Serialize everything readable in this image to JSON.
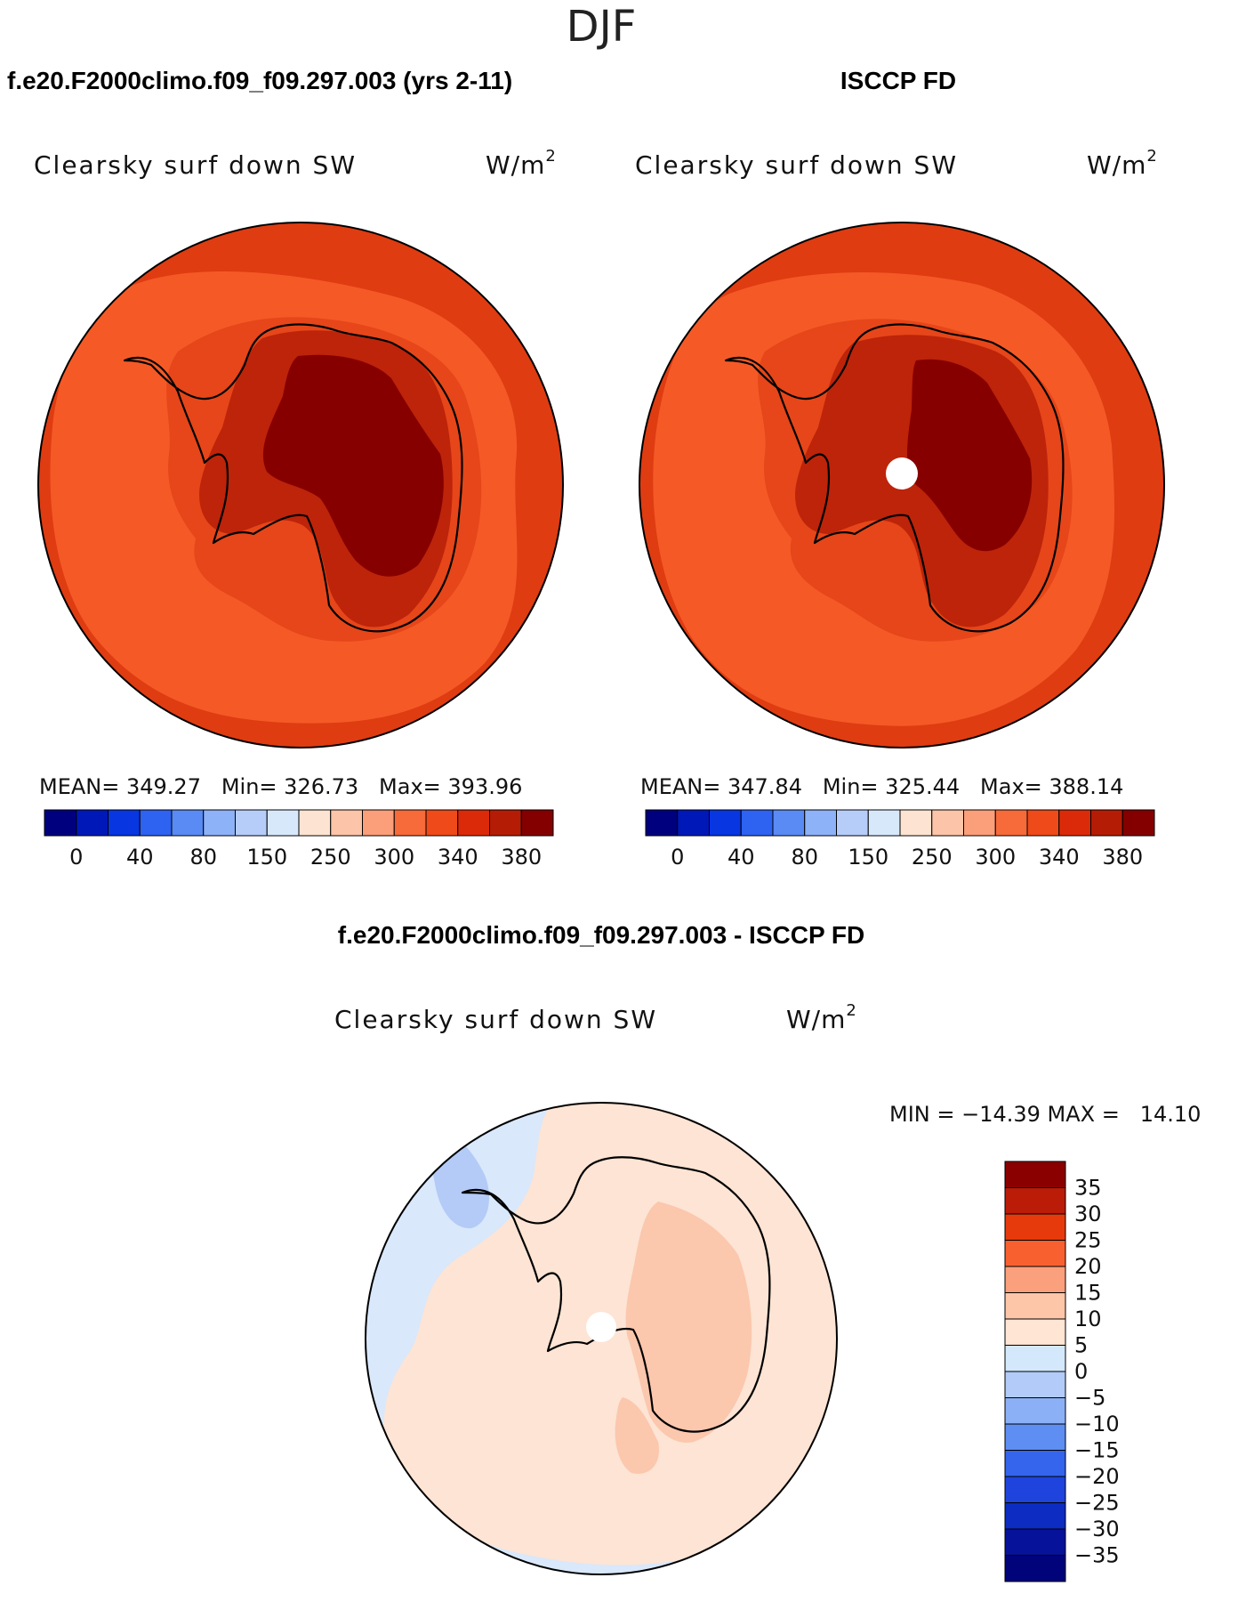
{
  "figure": {
    "title": "DJF"
  },
  "panels": [
    {
      "id": "model",
      "header": "f.e20.F2000climo.f09_f09.297.003 (yrs 2-11)",
      "variable": "Clearsky surf down SW",
      "units_base": "W/m",
      "units_exp": "2",
      "stats_text": "MEAN= 349.27   Min= 326.73   Max= 393.96",
      "stats": {
        "mean": 349.27,
        "min": 326.73,
        "max": 393.96
      }
    },
    {
      "id": "obs",
      "header": "ISCCP FD",
      "variable": "Clearsky surf down SW",
      "units_base": "W/m",
      "units_exp": "2",
      "stats_text": "MEAN= 347.84   Min= 325.44   Max= 388.14",
      "stats": {
        "mean": 347.84,
        "min": 325.44,
        "max": 388.14
      }
    },
    {
      "id": "diff",
      "header": "f.e20.F2000climo.f09_f09.297.003 - ISCCP FD",
      "variable": "Clearsky surf down SW",
      "units_base": "W/m",
      "units_exp": "2",
      "stats_text": "MIN = −14.39 MAX =   14.10",
      "stats": {
        "min": -14.39,
        "max": 14.1
      }
    }
  ],
  "abs_colorbar": {
    "colors": [
      "#00007f",
      "#0018b8",
      "#0836e0",
      "#2e62f0",
      "#5a8af4",
      "#8eb2f8",
      "#b6cdfa",
      "#d8e8fb",
      "#fde4d2",
      "#fcc4a8",
      "#fb9e7a",
      "#f76a3a",
      "#ef4a1a",
      "#db2a0a",
      "#b41c06",
      "#840000"
    ],
    "tick_labels": [
      "0",
      "40",
      "80",
      "150",
      "250",
      "300",
      "340",
      "380"
    ]
  },
  "diff_colorbar": {
    "colors": [
      "#8a0000",
      "#bb1c08",
      "#e63a0c",
      "#f86030",
      "#fba07c",
      "#fdc6a8",
      "#fee5d4",
      "#d4e8fb",
      "#b2cbf8",
      "#8cb0f5",
      "#5e8ef2",
      "#3465ec",
      "#1e44dd",
      "#0c2cc2",
      "#06129a",
      "#00037a"
    ],
    "tick_labels": [
      "35",
      "30",
      "25",
      "20",
      "15",
      "10",
      "5",
      "0",
      "−5",
      "−10",
      "−15",
      "−20",
      "−25",
      "−30",
      "−35"
    ]
  },
  "map_colors": {
    "ocean_outer": "#df3c12",
    "ocean_mid": "#f55a26",
    "coast_band": "#e64619",
    "interior": "#bd240a",
    "plateau": "#870000",
    "diff_ocean_neg": "#d9e8fb",
    "diff_land": "#fde4d4",
    "diff_pos": "#fbc7ad",
    "diff_neg_strong": "#b3cbf6",
    "coastline": "#000000",
    "pole_hole": "#ffffff"
  }
}
